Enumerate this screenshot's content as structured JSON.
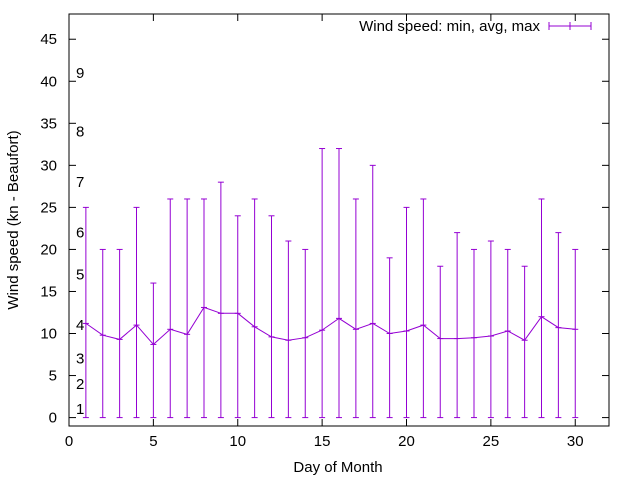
{
  "chart_data": {
    "type": "line",
    "xlabel": "Day of Month",
    "ylabel": "Wind speed (kn - Beaufort)",
    "xlim": [
      0,
      32
    ],
    "ylim": [
      -1,
      48
    ],
    "xticks": [
      0,
      5,
      10,
      15,
      20,
      25,
      30
    ],
    "yticks": [
      0,
      5,
      10,
      15,
      20,
      25,
      30,
      35,
      40,
      45
    ],
    "grid": false,
    "legend_position": "top-right",
    "beaufort_labels": [
      {
        "label": "1",
        "value": 1
      },
      {
        "label": "2",
        "value": 4
      },
      {
        "label": "3",
        "value": 7
      },
      {
        "label": "4",
        "value": 11
      },
      {
        "label": "5",
        "value": 17
      },
      {
        "label": "6",
        "value": 22
      },
      {
        "label": "7",
        "value": 28
      },
      {
        "label": "8",
        "value": 34
      },
      {
        "label": "9",
        "value": 41
      }
    ],
    "series": [
      {
        "name": "Wind speed: min, avg, max",
        "color": "#9400d3",
        "x": [
          1,
          2,
          3,
          4,
          5,
          6,
          7,
          8,
          9,
          10,
          11,
          12,
          13,
          14,
          15,
          16,
          17,
          18,
          19,
          20,
          21,
          22,
          23,
          24,
          25,
          26,
          27,
          28,
          29,
          30
        ],
        "avg": [
          11.2,
          9.8,
          9.3,
          11,
          8.7,
          10.5,
          9.9,
          13.1,
          12.4,
          12.4,
          10.8,
          9.6,
          9.2,
          9.5,
          10.4,
          11.8,
          10.5,
          11.2,
          10,
          10.3,
          11,
          9.4,
          9.4,
          9.5,
          9.7,
          10.3,
          9.2,
          12,
          10.7,
          10.5
        ],
        "min": [
          0,
          0,
          0,
          0,
          0,
          0,
          0,
          0,
          0,
          0,
          0,
          0,
          0,
          0,
          0,
          0,
          0,
          0,
          0,
          0,
          0,
          0,
          0,
          0,
          0,
          0,
          0,
          0,
          0,
          0
        ],
        "max": [
          25,
          20,
          20,
          25,
          16,
          26,
          26,
          26,
          28,
          24,
          26,
          24,
          21,
          20,
          32,
          32,
          26,
          30,
          19,
          25,
          26,
          18,
          22,
          20,
          21,
          20,
          18,
          26,
          22,
          20
        ]
      }
    ]
  }
}
